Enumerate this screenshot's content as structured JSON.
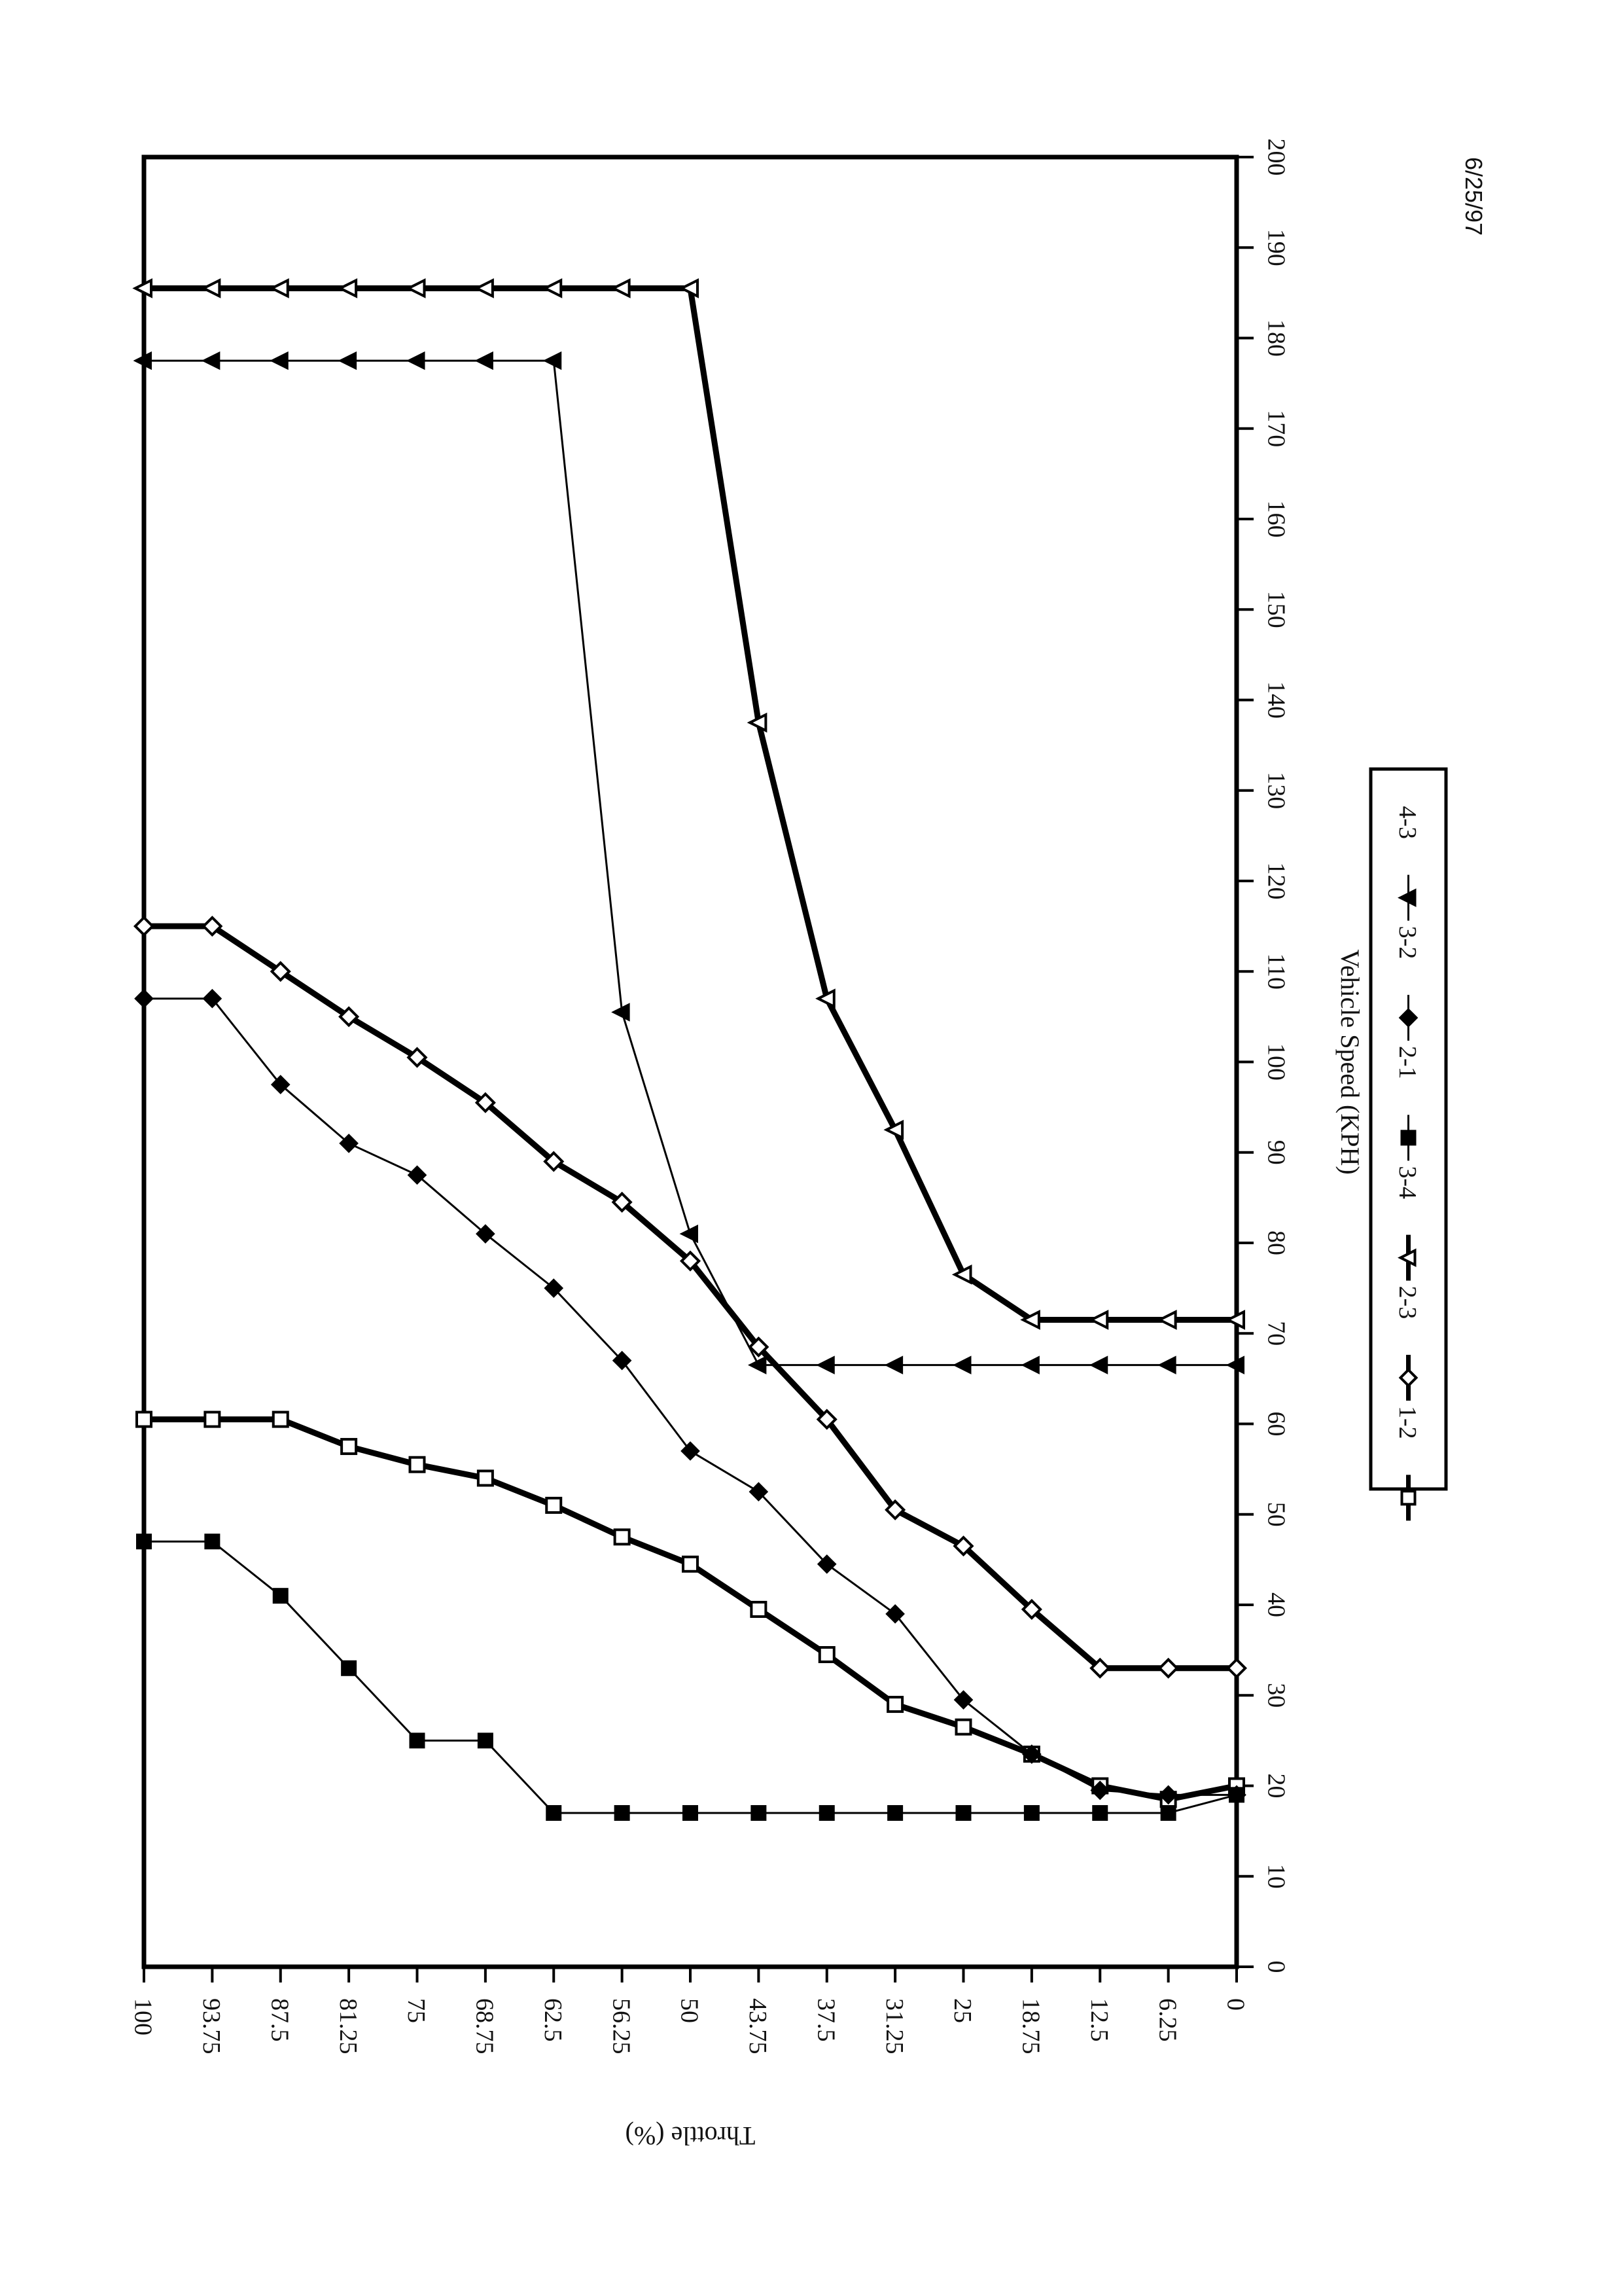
{
  "chart_data": {
    "type": "line",
    "orientation": "rotated-90-clockwise",
    "title": "",
    "xlabel": "Vehicle Speed (KPH)",
    "ylabel": "Throttle (%)",
    "date": "6/25/97",
    "xlim": [
      0,
      200
    ],
    "x_ticks": [
      "0",
      "10",
      "20",
      "30",
      "40",
      "50",
      "60",
      "70",
      "80",
      "90",
      "100",
      "110",
      "120",
      "130",
      "140",
      "150",
      "160",
      "170",
      "180",
      "190",
      "200"
    ],
    "ylim": [
      0,
      100
    ],
    "y_ticks": [
      "100",
      "93.75",
      "87.5",
      "81.25",
      "75",
      "68.75",
      "62.5",
      "56.25",
      "50",
      "43.75",
      "37.5",
      "31.25",
      "25",
      "18.75",
      "12.5",
      "6.25",
      "0"
    ],
    "grid": false,
    "legend": "bottom-center",
    "series": [
      {
        "name": "1-2",
        "marker": "open-square",
        "stroke": "heavy",
        "points": [
          [
            20,
            0
          ],
          [
            18.5,
            6.25
          ],
          [
            20,
            12.5
          ],
          [
            23.5,
            18.75
          ],
          [
            26.5,
            25
          ],
          [
            29,
            31.25
          ],
          [
            34.5,
            37.5
          ],
          [
            39.5,
            43.75
          ],
          [
            44.5,
            50
          ],
          [
            47.5,
            56.25
          ],
          [
            51,
            62.5
          ],
          [
            54,
            68.75
          ],
          [
            55.5,
            75
          ],
          [
            57.5,
            81.25
          ],
          [
            60.5,
            87.5
          ],
          [
            60.5,
            93.75
          ],
          [
            60.5,
            100
          ]
        ]
      },
      {
        "name": "2-3",
        "marker": "open-diamond",
        "stroke": "heavy",
        "points": [
          [
            33,
            0
          ],
          [
            33,
            6.25
          ],
          [
            33,
            12.5
          ],
          [
            39.5,
            18.75
          ],
          [
            46.5,
            25
          ],
          [
            50.5,
            31.25
          ],
          [
            60.5,
            37.5
          ],
          [
            68.5,
            43.75
          ],
          [
            78,
            50
          ],
          [
            84.5,
            56.25
          ],
          [
            89,
            62.5
          ],
          [
            95.5,
            68.75
          ],
          [
            100.5,
            75
          ],
          [
            105,
            81.25
          ],
          [
            110,
            87.5
          ],
          [
            115,
            93.75
          ],
          [
            115,
            100
          ]
        ]
      },
      {
        "name": "3-4",
        "marker": "open-triangle",
        "stroke": "heavy",
        "points": [
          [
            71.5,
            0
          ],
          [
            71.5,
            6.25
          ],
          [
            71.5,
            12.5
          ],
          [
            71.5,
            18.75
          ],
          [
            76.5,
            25
          ],
          [
            92.5,
            31.25
          ],
          [
            107,
            37.5
          ],
          [
            137.5,
            43.75
          ],
          [
            185.5,
            50
          ],
          [
            185.5,
            56.25
          ],
          [
            185.5,
            62.5
          ],
          [
            185.5,
            68.75
          ],
          [
            185.5,
            75
          ],
          [
            185.5,
            81.25
          ],
          [
            185.5,
            87.5
          ],
          [
            185.5,
            93.75
          ],
          [
            185.5,
            100
          ]
        ]
      },
      {
        "name": "2-1",
        "marker": "filled-square",
        "stroke": "thin",
        "points": [
          [
            19,
            0
          ],
          [
            17,
            6.25
          ],
          [
            17,
            12.5
          ],
          [
            17,
            18.75
          ],
          [
            17,
            25
          ],
          [
            17,
            31.25
          ],
          [
            17,
            37.5
          ],
          [
            17,
            43.75
          ],
          [
            17,
            50
          ],
          [
            17,
            56.25
          ],
          [
            17,
            62.5
          ],
          [
            25,
            68.75
          ],
          [
            25,
            75
          ],
          [
            33,
            81.25
          ],
          [
            41,
            87.5
          ],
          [
            47,
            93.75
          ],
          [
            47,
            100
          ]
        ]
      },
      {
        "name": "3-2",
        "marker": "filled-diamond",
        "stroke": "thin",
        "points": [
          [
            19,
            0
          ],
          [
            19,
            6.25
          ],
          [
            19.5,
            12.5
          ],
          [
            23.5,
            18.75
          ],
          [
            29.5,
            25
          ],
          [
            39,
            31.25
          ],
          [
            44.5,
            37.5
          ],
          [
            52.5,
            43.75
          ],
          [
            57,
            50
          ],
          [
            67,
            56.25
          ],
          [
            75,
            62.5
          ],
          [
            81,
            68.75
          ],
          [
            87.5,
            75
          ],
          [
            91,
            81.25
          ],
          [
            97.5,
            87.5
          ],
          [
            107,
            93.75
          ],
          [
            107,
            100
          ]
        ]
      },
      {
        "name": "4-3",
        "marker": "filled-triangle",
        "stroke": "thin",
        "points": [
          [
            66.5,
            0
          ],
          [
            66.5,
            6.25
          ],
          [
            66.5,
            12.5
          ],
          [
            66.5,
            18.75
          ],
          [
            66.5,
            25
          ],
          [
            66.5,
            31.25
          ],
          [
            66.5,
            37.5
          ],
          [
            66.5,
            43.75
          ],
          [
            81,
            50
          ],
          [
            105.5,
            56.25
          ],
          [
            177.5,
            62.5
          ],
          [
            177.5,
            68.75
          ],
          [
            177.5,
            75
          ],
          [
            177.5,
            81.25
          ],
          [
            177.5,
            87.5
          ],
          [
            177.5,
            93.75
          ],
          [
            177.5,
            100
          ]
        ]
      }
    ]
  }
}
